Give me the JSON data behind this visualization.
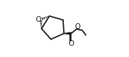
{
  "bg_color": "#ffffff",
  "line_color": "#1a1a1a",
  "line_width": 1.3,
  "figsize": [
    1.84,
    0.81
  ],
  "dpi": 100,
  "xlim": [
    0.0,
    1.0
  ],
  "ylim": [
    0.0,
    1.0
  ],
  "oxygen_text": "O",
  "ester_oxygen_text": "O",
  "carbonyl_oxygen_text": "O"
}
